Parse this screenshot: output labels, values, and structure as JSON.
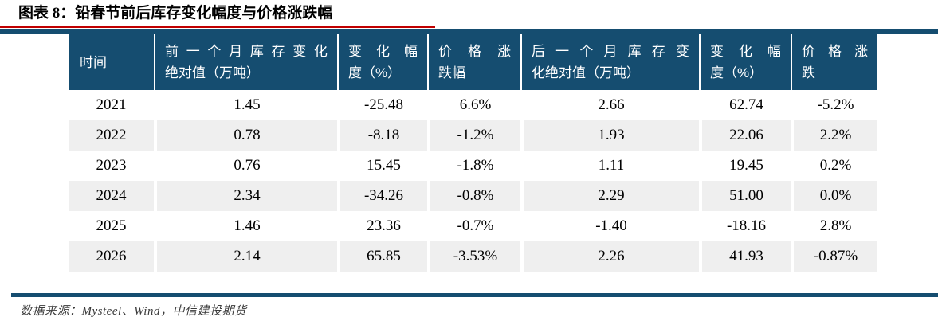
{
  "title": "图表 8：铅春节前后库存变化幅度与价格涨跌幅",
  "colors": {
    "navy": "#154D70",
    "red": "#C00000",
    "stripe": "#EFEFEF"
  },
  "table": {
    "headers": [
      {
        "line1": "时间",
        "line2": ""
      },
      {
        "line1": "前一个月库存变化",
        "line2": "绝对值（万吨）"
      },
      {
        "line1": "变化幅",
        "line2": "度（%）"
      },
      {
        "line1": "价格涨",
        "line2": "跌幅"
      },
      {
        "line1": "后一个月库存变",
        "line2": "化绝对值（万吨）"
      },
      {
        "line1": "变化幅",
        "line2": "度（%）"
      },
      {
        "line1": "价格涨",
        "line2": "跌"
      }
    ],
    "rows": [
      [
        "2021",
        "1.45",
        "-25.48",
        "6.6%",
        "2.66",
        "62.74",
        "-5.2%"
      ],
      [
        "2022",
        "0.78",
        "-8.18",
        "-1.2%",
        "1.93",
        "22.06",
        "2.2%"
      ],
      [
        "2023",
        "0.76",
        "15.45",
        "-1.8%",
        "1.11",
        "19.45",
        "0.2%"
      ],
      [
        "2024",
        "2.34",
        "-34.26",
        "-0.8%",
        "2.29",
        "51.00",
        "0.0%"
      ],
      [
        "2025",
        "1.46",
        "23.36",
        "-0.7%",
        "-1.40",
        "-18.16",
        "2.8%"
      ],
      [
        "2026",
        "2.14",
        "65.85",
        "-3.53%",
        "2.26",
        "41.93",
        "-0.87%"
      ]
    ]
  },
  "chart_data": {
    "type": "table",
    "title": "图表 8：铅春节前后库存变化幅度与价格涨跌幅",
    "columns": [
      "时间",
      "前一个月库存变化绝对值（万吨）",
      "变化幅度（%）",
      "价格涨跌幅",
      "后一个月库存变化绝对值（万吨）",
      "变化幅度（%）",
      "价格涨跌"
    ],
    "rows": [
      [
        "2021",
        1.45,
        -25.48,
        "6.6%",
        2.66,
        62.74,
        "-5.2%"
      ],
      [
        "2022",
        0.78,
        -8.18,
        "-1.2%",
        1.93,
        22.06,
        "2.2%"
      ],
      [
        "2023",
        0.76,
        15.45,
        "-1.8%",
        1.11,
        19.45,
        "0.2%"
      ],
      [
        "2024",
        2.34,
        -34.26,
        "-0.8%",
        2.29,
        51.0,
        "0.0%"
      ],
      [
        "2025",
        1.46,
        23.36,
        "-0.7%",
        -1.4,
        -18.16,
        "2.8%"
      ],
      [
        "2026",
        2.14,
        65.85,
        "-3.53%",
        2.26,
        41.93,
        "-0.87%"
      ]
    ]
  },
  "footer": {
    "source": "数据来源：Mysteel、Wind，中信建投期货"
  }
}
